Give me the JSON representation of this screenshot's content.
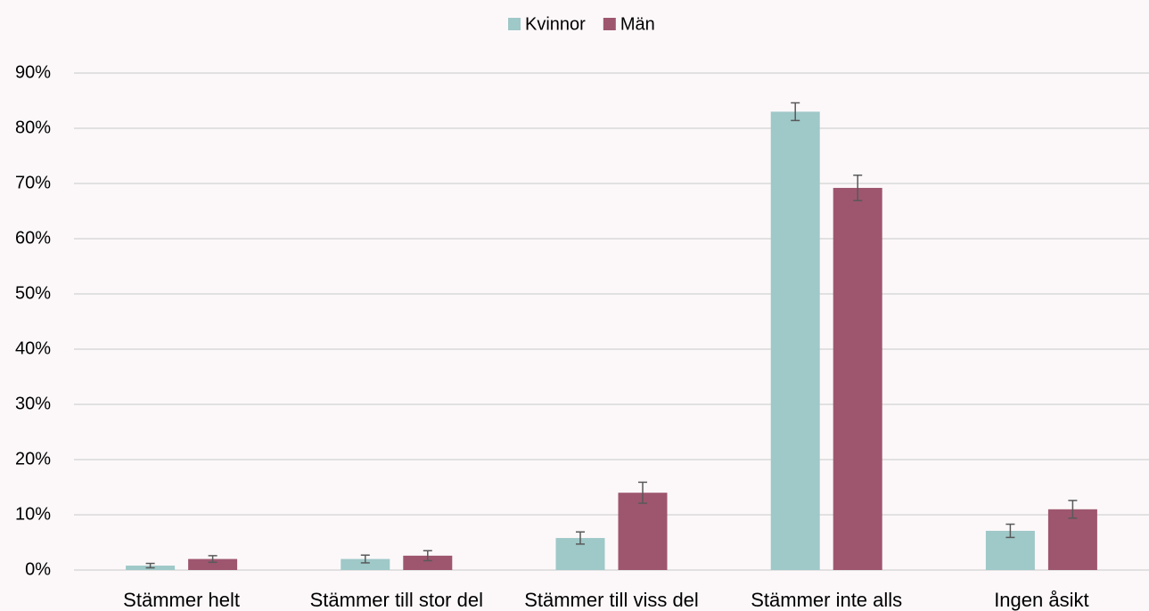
{
  "chart_data": {
    "type": "bar",
    "categories": [
      "Stämmer helt",
      "Stämmer till stor del",
      "Stämmer till viss del",
      "Stämmer inte alls",
      "Ingen åsikt"
    ],
    "series": [
      {
        "name": "Kvinnor",
        "color": "#9fc8c8",
        "values": [
          0.8,
          2,
          5.8,
          83,
          7.1
        ],
        "errors": [
          0.4,
          0.7,
          1.1,
          1.6,
          1.2
        ]
      },
      {
        "name": "Män",
        "color": "#9e566f",
        "values": [
          2,
          2.6,
          14,
          69.2,
          11
        ],
        "errors": [
          0.6,
          0.9,
          1.9,
          2.3,
          1.6
        ]
      }
    ],
    "ylim": [
      0,
      90
    ],
    "yticks": [
      {
        "value": 0,
        "label": "0%"
      },
      {
        "value": 10,
        "label": "10%"
      },
      {
        "value": 20,
        "label": "20%"
      },
      {
        "value": 30,
        "label": "30%"
      },
      {
        "value": 40,
        "label": "40%"
      },
      {
        "value": 50,
        "label": "50%"
      },
      {
        "value": 60,
        "label": "60%"
      },
      {
        "value": 70,
        "label": "70%"
      },
      {
        "value": 80,
        "label": "80%"
      },
      {
        "value": 90,
        "label": "90%"
      }
    ],
    "grid": true,
    "legend": "top"
  }
}
